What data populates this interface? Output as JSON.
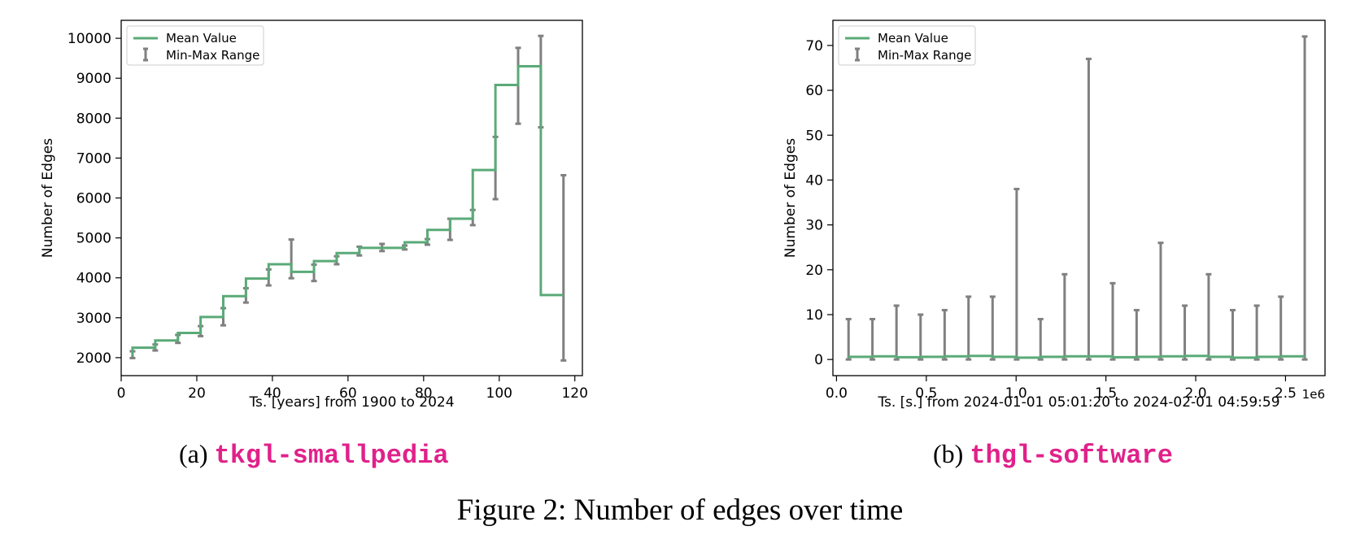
{
  "chart_data": [
    {
      "type": "line",
      "xlabel": "Ts. [years] from 1900 to 2024",
      "ylabel": "Number of Edges",
      "xlim": [
        0,
        122
      ],
      "ylim": [
        1550,
        10450
      ],
      "xticks": [
        0,
        20,
        40,
        60,
        80,
        100,
        120
      ],
      "yticks": [
        2000,
        3000,
        4000,
        5000,
        6000,
        7000,
        8000,
        9000,
        10000
      ],
      "x_scale_label": "",
      "grid": false,
      "legend": {
        "position": "upper-left",
        "entries": [
          "Mean Value",
          "Min-Max Range"
        ]
      },
      "colors": {
        "mean": "#5aaa78",
        "range": "#808080"
      },
      "series": [
        {
          "name": "Mean Value",
          "style": "step",
          "x": [
            3,
            6,
            9,
            12,
            15,
            18,
            21,
            24,
            27,
            30,
            33,
            36,
            39,
            42,
            45,
            48,
            51,
            54,
            57,
            60,
            63,
            66,
            69,
            72,
            75,
            78,
            81,
            84,
            87,
            90,
            93,
            96,
            99,
            102,
            105,
            108,
            111,
            114,
            117
          ],
          "y": [
            2050,
            2250,
            2250,
            2430,
            2430,
            2620,
            2620,
            3020,
            3020,
            3540,
            3540,
            3980,
            3980,
            4340,
            4340,
            4150,
            4150,
            4420,
            4420,
            4620,
            4620,
            4750,
            4750,
            4750,
            4750,
            4890,
            4890,
            5200,
            5200,
            5480,
            5480,
            6700,
            6700,
            8830,
            8830,
            9300,
            9300,
            3570,
            3570
          ]
        },
        {
          "name": "Min-Max Range",
          "style": "errorbar",
          "x": [
            3,
            9,
            15,
            21,
            27,
            33,
            39,
            45,
            51,
            57,
            63,
            69,
            75,
            81,
            87,
            93,
            99,
            105,
            111,
            117
          ],
          "min": [
            1990,
            2180,
            2370,
            2540,
            2810,
            3380,
            3810,
            3990,
            3920,
            4340,
            4560,
            4670,
            4710,
            4830,
            4950,
            5320,
            5970,
            7860,
            7770,
            1930
          ],
          "max": [
            2160,
            2330,
            2570,
            2790,
            3240,
            3740,
            4210,
            4960,
            4330,
            4540,
            4780,
            4850,
            4810,
            4970,
            5480,
            5700,
            7530,
            9760,
            10060,
            6570
          ]
        }
      ]
    },
    {
      "type": "line",
      "xlabel": "Ts. [s.] from 2024-01-01 05:01:20 to 2024-02-01 04:59:59",
      "ylabel": "Number of Edges",
      "xlim": [
        -0.02,
        2.72
      ],
      "ylim": [
        -3.6,
        75.6
      ],
      "xticks": [
        0.0,
        0.5,
        1.0,
        1.5,
        2.0,
        2.5
      ],
      "yticks": [
        0,
        10,
        20,
        30,
        40,
        50,
        60,
        70
      ],
      "x_scale_label": "1e6",
      "grid": false,
      "legend": {
        "position": "upper-left",
        "entries": [
          "Mean Value",
          "Min-Max Range"
        ]
      },
      "colors": {
        "mean": "#5aaa78",
        "range": "#808080"
      },
      "series": [
        {
          "name": "Mean Value",
          "style": "step",
          "x": [
            0.067,
            0.134,
            0.2,
            0.267,
            0.334,
            0.401,
            0.468,
            0.535,
            0.602,
            0.668,
            0.735,
            0.802,
            0.869,
            0.936,
            1.003,
            1.07,
            1.136,
            1.203,
            1.27,
            1.337,
            1.404,
            1.471,
            1.538,
            1.604,
            1.671,
            1.738,
            1.805,
            1.872,
            1.939,
            2.006,
            2.072,
            2.139,
            2.206,
            2.273,
            2.34,
            2.407,
            2.474,
            2.54,
            2.607
          ],
          "y": [
            0.4,
            0.6,
            0.6,
            0.7,
            0.7,
            0.5,
            0.5,
            0.6,
            0.6,
            0.7,
            0.7,
            0.8,
            0.8,
            0.6,
            0.6,
            0.4,
            0.4,
            0.6,
            0.6,
            0.7,
            0.7,
            0.7,
            0.7,
            0.5,
            0.5,
            0.6,
            0.6,
            0.7,
            0.7,
            0.8,
            0.8,
            0.6,
            0.6,
            0.4,
            0.4,
            0.6,
            0.6,
            0.7,
            0.7
          ]
        },
        {
          "name": "Min-Max Range",
          "style": "errorbar",
          "x": [
            0.067,
            0.2,
            0.334,
            0.468,
            0.602,
            0.735,
            0.869,
            1.003,
            1.136,
            1.27,
            1.404,
            1.538,
            1.671,
            1.805,
            1.939,
            2.072,
            2.206,
            2.34,
            2.474,
            2.607
          ],
          "min": [
            0,
            0,
            0,
            0,
            0,
            0,
            0,
            0,
            0,
            0,
            0,
            0,
            0,
            0,
            0,
            0,
            0,
            0,
            0,
            0
          ],
          "max": [
            9,
            9,
            12,
            10,
            11,
            14,
            14,
            38,
            9,
            19,
            67,
            17,
            11,
            26,
            12,
            19,
            11,
            12,
            14,
            72
          ]
        }
      ]
    }
  ],
  "captions": {
    "a": {
      "prefix": "(a) ",
      "dataset": "tkgl-smallpedia"
    },
    "b": {
      "prefix": "(b) ",
      "dataset": "thgl-software"
    },
    "figure": "Figure 2: Number of edges over time"
  }
}
